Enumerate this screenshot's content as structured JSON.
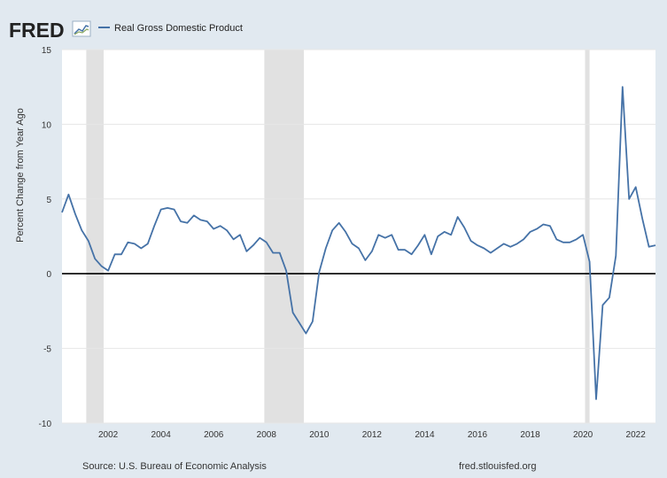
{
  "header": {
    "logo_text": "FRED",
    "legend_label": "Real Gross Domestic Product"
  },
  "footer": {
    "source": "Source: U.S. Bureau of Economic Analysis",
    "site": "fred.stlouisfed.org"
  },
  "colors": {
    "line": "#4572a7",
    "recession": "#e1e1e1",
    "background": "#e1e9f0",
    "plot": "#ffffff",
    "zero_line": "#000000"
  },
  "chart_data": {
    "type": "line",
    "ylabel": "Percent Change from Year Ago",
    "xlabel": "",
    "xlim": [
      2000.25,
      2022.75
    ],
    "ylim": [
      -10,
      15
    ],
    "yticks": [
      15,
      10,
      5,
      0,
      -5,
      -10
    ],
    "xticks": [
      "2002",
      "2004",
      "2006",
      "2008",
      "2010",
      "2012",
      "2014",
      "2016",
      "2018",
      "2020",
      "2022"
    ],
    "grid": "horizontal",
    "legend": "top-left",
    "recessions": [
      [
        2001.17,
        2001.83
      ],
      [
        2007.92,
        2009.42
      ],
      [
        2020.08,
        2020.25
      ]
    ],
    "series": [
      {
        "name": "Real Gross Domestic Product",
        "x": [
          2000.25,
          2000.5,
          2000.75,
          2001.0,
          2001.25,
          2001.5,
          2001.75,
          2002.0,
          2002.25,
          2002.5,
          2002.75,
          2003.0,
          2003.25,
          2003.5,
          2003.75,
          2004.0,
          2004.25,
          2004.5,
          2004.75,
          2005.0,
          2005.25,
          2005.5,
          2005.75,
          2006.0,
          2006.25,
          2006.5,
          2006.75,
          2007.0,
          2007.25,
          2007.5,
          2007.75,
          2008.0,
          2008.25,
          2008.5,
          2008.75,
          2009.0,
          2009.25,
          2009.5,
          2009.75,
          2010.0,
          2010.25,
          2010.5,
          2010.75,
          2011.0,
          2011.25,
          2011.5,
          2011.75,
          2012.0,
          2012.25,
          2012.5,
          2012.75,
          2013.0,
          2013.25,
          2013.5,
          2013.75,
          2014.0,
          2014.25,
          2014.5,
          2014.75,
          2015.0,
          2015.25,
          2015.5,
          2015.75,
          2016.0,
          2016.25,
          2016.5,
          2016.75,
          2017.0,
          2017.25,
          2017.5,
          2017.75,
          2018.0,
          2018.25,
          2018.5,
          2018.75,
          2019.0,
          2019.25,
          2019.5,
          2019.75,
          2020.0,
          2020.25,
          2020.5,
          2020.75,
          2021.0,
          2021.25,
          2021.5,
          2021.75,
          2022.0,
          2022.25,
          2022.5,
          2022.75
        ],
        "values": [
          4.1,
          5.3,
          4.0,
          2.9,
          2.2,
          1.0,
          0.5,
          0.2,
          1.3,
          1.3,
          2.1,
          2.0,
          1.7,
          2.0,
          3.2,
          4.3,
          4.4,
          4.3,
          3.5,
          3.4,
          3.9,
          3.6,
          3.5,
          3.0,
          3.2,
          2.9,
          2.3,
          2.6,
          1.5,
          1.9,
          2.4,
          2.1,
          1.4,
          1.4,
          0.2,
          -2.6,
          -3.3,
          -4.0,
          -3.2,
          0.1,
          1.7,
          2.9,
          3.4,
          2.8,
          2.0,
          1.7,
          0.9,
          1.5,
          2.6,
          2.4,
          2.6,
          1.6,
          1.6,
          1.3,
          1.9,
          2.6,
          1.3,
          2.5,
          2.8,
          2.6,
          3.8,
          3.1,
          2.2,
          1.9,
          1.7,
          1.4,
          1.7,
          2.0,
          1.8,
          2.0,
          2.3,
          2.8,
          3.0,
          3.3,
          3.2,
          2.3,
          2.1,
          2.1,
          2.3,
          2.6,
          0.8,
          -8.4,
          -2.1,
          -1.6,
          1.2,
          12.5,
          5.0,
          5.8,
          3.7,
          1.8,
          1.9
        ]
      }
    ]
  }
}
